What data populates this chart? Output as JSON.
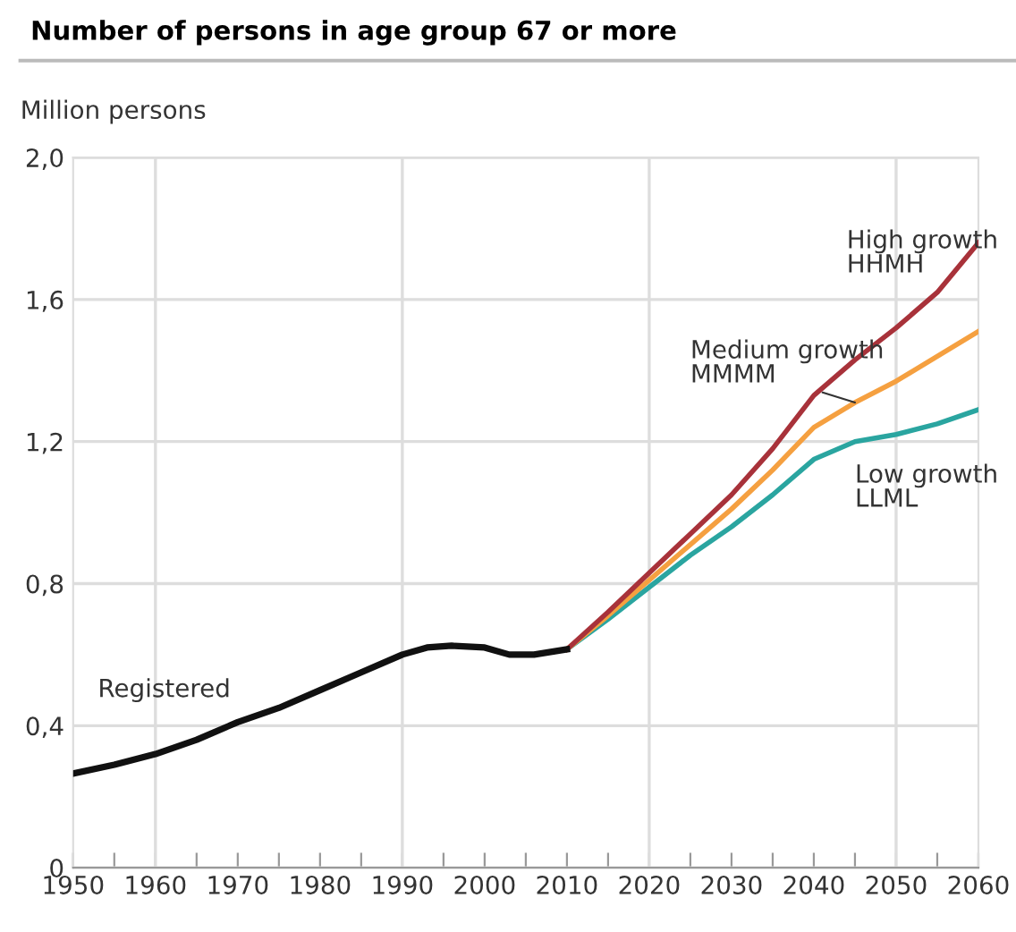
{
  "chart_data": {
    "type": "line",
    "title": "Number of persons in age group 67 or more",
    "ylabel": "Million persons",
    "series": [
      {
        "name": "Registered",
        "color": "#111111",
        "x": [
          1950,
          1955,
          1960,
          1965,
          1970,
          1975,
          1980,
          1985,
          1990,
          1993,
          1996,
          2000,
          2003,
          2006,
          2010
        ],
        "values": [
          0.265,
          0.29,
          0.32,
          0.36,
          0.41,
          0.45,
          0.5,
          0.55,
          0.6,
          0.62,
          0.625,
          0.62,
          0.6,
          0.6,
          0.615
        ]
      },
      {
        "name": "High growth\nHHMH",
        "color": "#a8323a",
        "x": [
          2010,
          2015,
          2020,
          2025,
          2030,
          2035,
          2040,
          2045,
          2050,
          2055,
          2060
        ],
        "values": [
          0.615,
          0.72,
          0.83,
          0.94,
          1.05,
          1.18,
          1.33,
          1.43,
          1.52,
          1.62,
          1.76
        ]
      },
      {
        "name": "Medium growth\nMMMM",
        "color": "#f5a040",
        "x": [
          2010,
          2015,
          2020,
          2025,
          2030,
          2035,
          2040,
          2045,
          2050,
          2055,
          2060
        ],
        "values": [
          0.615,
          0.71,
          0.81,
          0.91,
          1.01,
          1.12,
          1.24,
          1.31,
          1.37,
          1.44,
          1.51
        ]
      },
      {
        "name": "Low growth\nLLML",
        "color": "#2aa5a0",
        "x": [
          2010,
          2015,
          2020,
          2025,
          2030,
          2035,
          2040,
          2045,
          2050,
          2055,
          2060
        ],
        "values": [
          0.615,
          0.7,
          0.79,
          0.88,
          0.96,
          1.05,
          1.15,
          1.2,
          1.22,
          1.25,
          1.29
        ]
      }
    ],
    "xlim": [
      1950,
      2060
    ],
    "ylim": [
      0,
      2.0
    ],
    "xticks": [
      1950,
      {
        "value": 1955,
        "label": null
      },
      1960,
      {
        "value": 1965,
        "label": null
      },
      1970,
      {
        "value": 1975,
        "label": null
      },
      1980,
      {
        "value": 1985,
        "label": null
      },
      1990,
      {
        "value": 1995,
        "label": null
      },
      2000,
      {
        "value": 2005,
        "label": null
      },
      2010,
      {
        "value": 2015,
        "label": null
      },
      2020,
      {
        "value": 2025,
        "label": null
      },
      2030,
      {
        "value": 2035,
        "label": null
      },
      2040,
      {
        "value": 2045,
        "label": null
      },
      2050,
      {
        "value": 2055,
        "label": null
      },
      2060
    ],
    "yticks": [
      {
        "value": 0,
        "label": "0"
      },
      {
        "value": 0.4,
        "label": "0,4"
      },
      {
        "value": 0.8,
        "label": "0,8"
      },
      {
        "value": 1.2,
        "label": "1,2"
      },
      {
        "value": 1.6,
        "label": "1,6"
      },
      {
        "value": 2.0,
        "label": "2,0"
      }
    ],
    "grid": "y",
    "ref_lines": [
      {
        "axis": "x",
        "value": 1960,
        "color": "#dddddd"
      },
      {
        "axis": "x",
        "value": 1990,
        "color": "#dddddd"
      },
      {
        "axis": "x",
        "value": 2020,
        "color": "#dddddd"
      },
      {
        "axis": "x",
        "value": 2050,
        "color": "#dddddd"
      }
    ],
    "legend": false,
    "marker": "none",
    "line_style": "solid"
  }
}
